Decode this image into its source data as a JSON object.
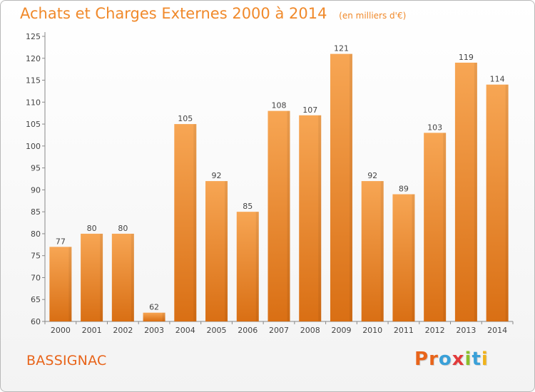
{
  "page": {
    "title": "Achats et Charges Externes 2000 à 2014",
    "unit": "(en milliers d'€)",
    "commune": "BASSIGNAC",
    "logo_text": "Proxiti"
  },
  "colors": {
    "title": "#f0892a",
    "commune": "#e8641a",
    "bar_light": "#f7a654",
    "bar_dark": "#d96f14",
    "logo_letters": [
      "#e8641a",
      "#e8641a",
      "#3aa0d8",
      "#e23b3b",
      "#8cbf2c",
      "#3aa0d8",
      "#f0b21a"
    ]
  },
  "chart_data": {
    "type": "bar",
    "title": "Achats et Charges Externes 2000 à 2014",
    "subtitle": "(en milliers d'€)",
    "categories": [
      "2000",
      "2001",
      "2002",
      "2003",
      "2004",
      "2005",
      "2006",
      "2007",
      "2008",
      "2009",
      "2010",
      "2011",
      "2012",
      "2013",
      "2014"
    ],
    "values": [
      77,
      80,
      80,
      62,
      105,
      92,
      85,
      108,
      107,
      121,
      92,
      89,
      103,
      119,
      114
    ],
    "ylim": [
      60,
      125
    ],
    "yticks": [
      60,
      65,
      70,
      75,
      80,
      85,
      90,
      95,
      100,
      105,
      110,
      115,
      120,
      125
    ],
    "xlabel": "",
    "ylabel": "",
    "grid": false,
    "legend": "none",
    "data_labels": true
  }
}
